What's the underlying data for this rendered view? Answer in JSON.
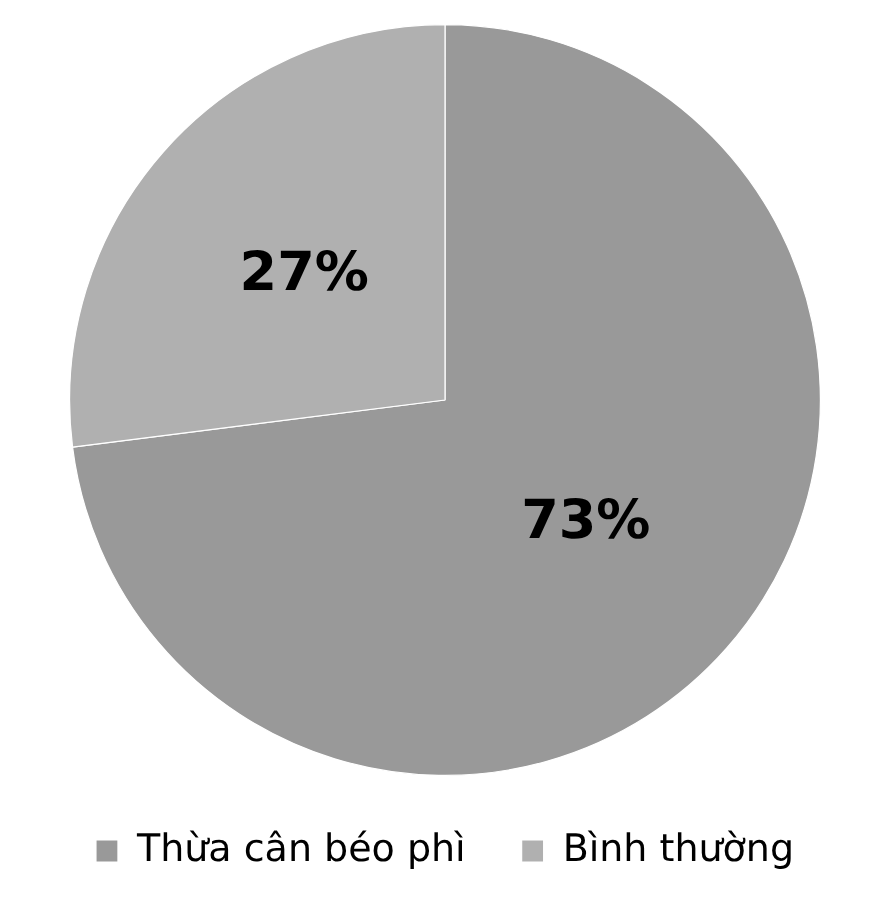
{
  "chart_data": {
    "type": "pie",
    "categories": [
      "Thừa cân béo phì",
      "Bình thường"
    ],
    "values": [
      73,
      27
    ],
    "colors": [
      "#999999",
      "#b0b0b0"
    ],
    "value_labels": [
      "73%",
      "27%"
    ],
    "legend": "bottom"
  }
}
